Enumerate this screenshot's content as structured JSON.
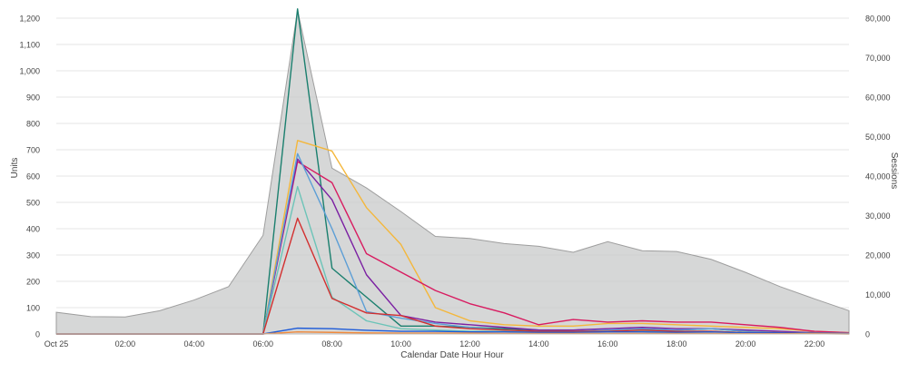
{
  "chart_data": {
    "type": "line",
    "xlabel": "Calendar Date Hour Hour",
    "ylabel_left": "Units",
    "ylabel_right": "Sessions",
    "ylim_left": [
      0,
      1200
    ],
    "ylim_right": [
      0,
      80000
    ],
    "x_tick_labels": [
      "Oct 25",
      "02:00",
      "04:00",
      "06:00",
      "08:00",
      "10:00",
      "12:00",
      "14:00",
      "16:00",
      "18:00",
      "20:00",
      "22:00"
    ],
    "y_left_ticks": [
      "0",
      "100",
      "200",
      "300",
      "400",
      "500",
      "600",
      "700",
      "800",
      "900",
      "1,000",
      "1,100",
      "1,200"
    ],
    "y_right_ticks": [
      "0",
      "10,000",
      "20,000",
      "30,000",
      "40,000",
      "50,000",
      "60,000",
      "70,000",
      "80,000"
    ],
    "x": [
      0,
      1,
      2,
      3,
      4,
      5,
      6,
      7,
      8,
      9,
      10,
      11,
      12,
      13,
      14,
      15,
      16,
      17,
      18,
      19,
      20,
      21,
      22,
      23
    ],
    "area_series": {
      "axis": "right",
      "color": "#c8c9ca",
      "values": [
        5500,
        4400,
        4300,
        5900,
        8600,
        12000,
        25000,
        82000,
        42000,
        37000,
        31000,
        24700,
        24200,
        22900,
        22200,
        20700,
        23400,
        21100,
        20900,
        18900,
        15600,
        12000,
        8900,
        5900
      ]
    },
    "series": [
      {
        "color": "#1a7f6e",
        "values": [
          0,
          0,
          0,
          0,
          0,
          0,
          0,
          1235,
          250,
          140,
          30,
          30,
          25,
          20,
          15,
          10,
          10,
          15,
          15,
          20,
          10,
          5,
          5,
          3
        ]
      },
      {
        "color": "#f4b73b",
        "values": [
          0,
          0,
          0,
          0,
          0,
          0,
          0,
          735,
          695,
          480,
          340,
          100,
          50,
          35,
          30,
          30,
          40,
          40,
          35,
          30,
          25,
          20,
          10,
          5
        ]
      },
      {
        "color": "#d81b60",
        "values": [
          0,
          0,
          0,
          0,
          0,
          0,
          0,
          655,
          575,
          305,
          235,
          165,
          115,
          80,
          35,
          55,
          45,
          50,
          45,
          45,
          35,
          25,
          10,
          5
        ]
      },
      {
        "color": "#7b1fa2",
        "values": [
          0,
          0,
          0,
          0,
          0,
          0,
          0,
          665,
          510,
          225,
          70,
          45,
          35,
          25,
          15,
          15,
          20,
          25,
          20,
          20,
          15,
          10,
          5,
          3
        ]
      },
      {
        "color": "#5c9ed6",
        "values": [
          0,
          0,
          0,
          0,
          0,
          0,
          0,
          685,
          400,
          85,
          60,
          40,
          25,
          15,
          10,
          10,
          15,
          20,
          15,
          20,
          10,
          5,
          5,
          3
        ]
      },
      {
        "color": "#6cc4b8",
        "values": [
          0,
          0,
          0,
          0,
          0,
          0,
          0,
          560,
          140,
          50,
          20,
          15,
          10,
          10,
          10,
          10,
          10,
          10,
          10,
          10,
          5,
          5,
          3,
          2
        ]
      },
      {
        "color": "#d32f2f",
        "values": [
          0,
          0,
          0,
          0,
          0,
          0,
          0,
          440,
          135,
          80,
          70,
          30,
          20,
          15,
          10,
          10,
          10,
          15,
          10,
          10,
          5,
          5,
          3,
          2
        ]
      },
      {
        "color": "#1e5bd8",
        "values": [
          0,
          0,
          0,
          0,
          0,
          0,
          0,
          22,
          20,
          14,
          10,
          10,
          8,
          8,
          6,
          6,
          8,
          8,
          6,
          8,
          4,
          4,
          2,
          1
        ]
      },
      {
        "color": "#f08a3c",
        "values": [
          0,
          0,
          0,
          0,
          0,
          0,
          0,
          8,
          6,
          4,
          3,
          3,
          3,
          2,
          2,
          2,
          2,
          2,
          2,
          2,
          1,
          1,
          1,
          0
        ]
      }
    ]
  }
}
